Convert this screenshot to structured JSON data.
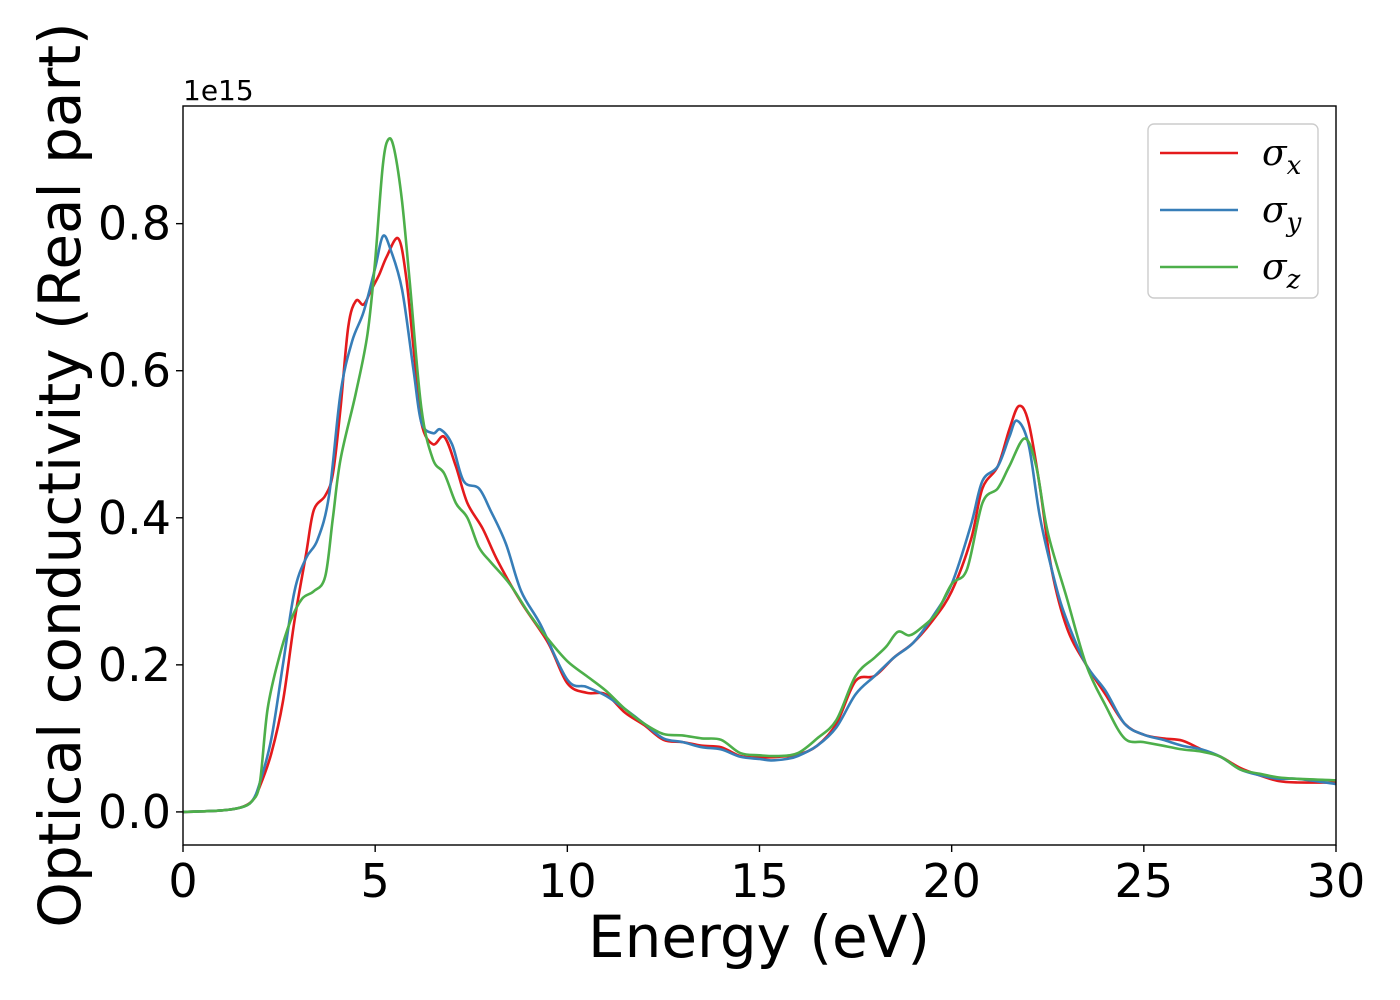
{
  "chart_data": {
    "type": "line",
    "xlabel": "Energy (eV)",
    "ylabel": "Optical conductivity (Real part)",
    "y_offset_label": "1e15",
    "xlim": [
      0,
      30
    ],
    "ylim": [
      -0.045,
      0.96
    ],
    "x_ticks": [
      0,
      5,
      10,
      15,
      20,
      25,
      30
    ],
    "x_tick_labels": [
      "0",
      "5",
      "10",
      "15",
      "20",
      "25",
      "30"
    ],
    "y_ticks": [
      0.0,
      0.2,
      0.4,
      0.6,
      0.8
    ],
    "y_tick_labels": [
      "0.0",
      "0.2",
      "0.4",
      "0.6",
      "0.8"
    ],
    "grid": false,
    "legend_position": "top-right",
    "series": [
      {
        "name": "σ",
        "subscript": "x",
        "color": "#e41a1c",
        "points": [
          [
            0,
            0.0
          ],
          [
            1,
            0.002
          ],
          [
            1.5,
            0.006
          ],
          [
            1.8,
            0.015
          ],
          [
            2.0,
            0.035
          ],
          [
            2.3,
            0.08
          ],
          [
            2.6,
            0.15
          ],
          [
            2.9,
            0.26
          ],
          [
            3.2,
            0.35
          ],
          [
            3.4,
            0.41
          ],
          [
            3.7,
            0.43
          ],
          [
            3.9,
            0.46
          ],
          [
            4.1,
            0.55
          ],
          [
            4.3,
            0.66
          ],
          [
            4.5,
            0.695
          ],
          [
            4.7,
            0.69
          ],
          [
            4.9,
            0.71
          ],
          [
            5.1,
            0.73
          ],
          [
            5.3,
            0.755
          ],
          [
            5.6,
            0.78
          ],
          [
            5.8,
            0.73
          ],
          [
            6.0,
            0.63
          ],
          [
            6.2,
            0.53
          ],
          [
            6.5,
            0.5
          ],
          [
            6.8,
            0.51
          ],
          [
            7.1,
            0.47
          ],
          [
            7.4,
            0.42
          ],
          [
            7.8,
            0.385
          ],
          [
            8.2,
            0.34
          ],
          [
            8.8,
            0.285
          ],
          [
            9.5,
            0.23
          ],
          [
            10,
            0.175
          ],
          [
            10.5,
            0.162
          ],
          [
            11,
            0.16
          ],
          [
            11.5,
            0.135
          ],
          [
            12,
            0.118
          ],
          [
            12.5,
            0.098
          ],
          [
            13,
            0.095
          ],
          [
            13.5,
            0.09
          ],
          [
            14,
            0.088
          ],
          [
            14.5,
            0.076
          ],
          [
            15,
            0.074
          ],
          [
            15.5,
            0.075
          ],
          [
            16,
            0.078
          ],
          [
            16.5,
            0.09
          ],
          [
            17,
            0.12
          ],
          [
            17.5,
            0.178
          ],
          [
            18,
            0.185
          ],
          [
            18.5,
            0.21
          ],
          [
            19,
            0.23
          ],
          [
            19.5,
            0.26
          ],
          [
            20,
            0.3
          ],
          [
            20.5,
            0.37
          ],
          [
            20.8,
            0.44
          ],
          [
            21.2,
            0.47
          ],
          [
            21.5,
            0.52
          ],
          [
            21.75,
            0.552
          ],
          [
            22.0,
            0.53
          ],
          [
            22.3,
            0.44
          ],
          [
            22.6,
            0.33
          ],
          [
            23,
            0.25
          ],
          [
            23.5,
            0.2
          ],
          [
            24,
            0.16
          ],
          [
            24.5,
            0.12
          ],
          [
            25,
            0.105
          ],
          [
            25.5,
            0.1
          ],
          [
            26,
            0.097
          ],
          [
            26.5,
            0.085
          ],
          [
            27,
            0.075
          ],
          [
            27.5,
            0.06
          ],
          [
            28,
            0.05
          ],
          [
            28.5,
            0.042
          ],
          [
            29,
            0.04
          ],
          [
            30,
            0.04
          ]
        ]
      },
      {
        "name": "σ",
        "subscript": "y",
        "color": "#377eb8",
        "points": [
          [
            0,
            0.0
          ],
          [
            1,
            0.002
          ],
          [
            1.5,
            0.006
          ],
          [
            1.8,
            0.015
          ],
          [
            2.0,
            0.04
          ],
          [
            2.3,
            0.1
          ],
          [
            2.6,
            0.2
          ],
          [
            2.9,
            0.3
          ],
          [
            3.2,
            0.345
          ],
          [
            3.5,
            0.37
          ],
          [
            3.8,
            0.43
          ],
          [
            4.1,
            0.57
          ],
          [
            4.4,
            0.64
          ],
          [
            4.7,
            0.68
          ],
          [
            5.0,
            0.74
          ],
          [
            5.2,
            0.783
          ],
          [
            5.4,
            0.765
          ],
          [
            5.7,
            0.71
          ],
          [
            6.0,
            0.6
          ],
          [
            6.2,
            0.53
          ],
          [
            6.5,
            0.515
          ],
          [
            6.7,
            0.52
          ],
          [
            7.0,
            0.5
          ],
          [
            7.3,
            0.45
          ],
          [
            7.7,
            0.44
          ],
          [
            8.0,
            0.41
          ],
          [
            8.4,
            0.365
          ],
          [
            8.8,
            0.3
          ],
          [
            9.3,
            0.255
          ],
          [
            10,
            0.18
          ],
          [
            10.5,
            0.17
          ],
          [
            11,
            0.158
          ],
          [
            11.5,
            0.14
          ],
          [
            12,
            0.12
          ],
          [
            12.5,
            0.1
          ],
          [
            13,
            0.095
          ],
          [
            13.5,
            0.088
          ],
          [
            14,
            0.085
          ],
          [
            14.5,
            0.075
          ],
          [
            15,
            0.072
          ],
          [
            15.3,
            0.07
          ],
          [
            15.7,
            0.072
          ],
          [
            16,
            0.076
          ],
          [
            16.5,
            0.09
          ],
          [
            17,
            0.115
          ],
          [
            17.5,
            0.16
          ],
          [
            18,
            0.185
          ],
          [
            18.5,
            0.21
          ],
          [
            19,
            0.23
          ],
          [
            19.5,
            0.265
          ],
          [
            20,
            0.31
          ],
          [
            20.5,
            0.39
          ],
          [
            20.8,
            0.45
          ],
          [
            21.2,
            0.47
          ],
          [
            21.5,
            0.51
          ],
          [
            21.7,
            0.532
          ],
          [
            22.0,
            0.5
          ],
          [
            22.3,
            0.4
          ],
          [
            22.7,
            0.31
          ],
          [
            23,
            0.26
          ],
          [
            23.5,
            0.2
          ],
          [
            24,
            0.165
          ],
          [
            24.5,
            0.12
          ],
          [
            25,
            0.105
          ],
          [
            25.5,
            0.098
          ],
          [
            26,
            0.09
          ],
          [
            26.5,
            0.085
          ],
          [
            27,
            0.075
          ],
          [
            27.5,
            0.058
          ],
          [
            28,
            0.05
          ],
          [
            28.5,
            0.045
          ],
          [
            29,
            0.045
          ],
          [
            30,
            0.038
          ]
        ]
      },
      {
        "name": "σ",
        "subscript": "z",
        "color": "#4daf4a",
        "points": [
          [
            0,
            0.0
          ],
          [
            1,
            0.002
          ],
          [
            1.5,
            0.006
          ],
          [
            1.8,
            0.015
          ],
          [
            2.0,
            0.04
          ],
          [
            2.2,
            0.14
          ],
          [
            2.5,
            0.21
          ],
          [
            2.8,
            0.26
          ],
          [
            3.1,
            0.29
          ],
          [
            3.4,
            0.3
          ],
          [
            3.7,
            0.32
          ],
          [
            3.9,
            0.4
          ],
          [
            4.1,
            0.48
          ],
          [
            4.5,
            0.57
          ],
          [
            4.8,
            0.65
          ],
          [
            5.0,
            0.75
          ],
          [
            5.2,
            0.88
          ],
          [
            5.35,
            0.915
          ],
          [
            5.5,
            0.9
          ],
          [
            5.7,
            0.83
          ],
          [
            5.9,
            0.72
          ],
          [
            6.2,
            0.55
          ],
          [
            6.5,
            0.48
          ],
          [
            6.8,
            0.46
          ],
          [
            7.1,
            0.42
          ],
          [
            7.4,
            0.4
          ],
          [
            7.7,
            0.36
          ],
          [
            8.0,
            0.34
          ],
          [
            8.5,
            0.31
          ],
          [
            9,
            0.27
          ],
          [
            9.5,
            0.235
          ],
          [
            10,
            0.205
          ],
          [
            10.5,
            0.185
          ],
          [
            11,
            0.165
          ],
          [
            11.5,
            0.14
          ],
          [
            12,
            0.12
          ],
          [
            12.5,
            0.106
          ],
          [
            13,
            0.104
          ],
          [
            13.5,
            0.1
          ],
          [
            14,
            0.098
          ],
          [
            14.5,
            0.08
          ],
          [
            15,
            0.077
          ],
          [
            15.5,
            0.076
          ],
          [
            16,
            0.08
          ],
          [
            16.5,
            0.1
          ],
          [
            17,
            0.125
          ],
          [
            17.5,
            0.185
          ],
          [
            18,
            0.21
          ],
          [
            18.3,
            0.225
          ],
          [
            18.6,
            0.245
          ],
          [
            18.9,
            0.24
          ],
          [
            19.2,
            0.25
          ],
          [
            19.6,
            0.27
          ],
          [
            20,
            0.31
          ],
          [
            20.4,
            0.33
          ],
          [
            20.8,
            0.42
          ],
          [
            21.2,
            0.44
          ],
          [
            21.5,
            0.47
          ],
          [
            21.9,
            0.508
          ],
          [
            22.2,
            0.47
          ],
          [
            22.5,
            0.38
          ],
          [
            23,
            0.29
          ],
          [
            23.5,
            0.2
          ],
          [
            24,
            0.145
          ],
          [
            24.5,
            0.1
          ],
          [
            25,
            0.095
          ],
          [
            25.5,
            0.09
          ],
          [
            26,
            0.085
          ],
          [
            26.5,
            0.082
          ],
          [
            27,
            0.075
          ],
          [
            27.5,
            0.058
          ],
          [
            28,
            0.052
          ],
          [
            28.5,
            0.047
          ],
          [
            29,
            0.045
          ],
          [
            30,
            0.043
          ]
        ]
      }
    ]
  }
}
